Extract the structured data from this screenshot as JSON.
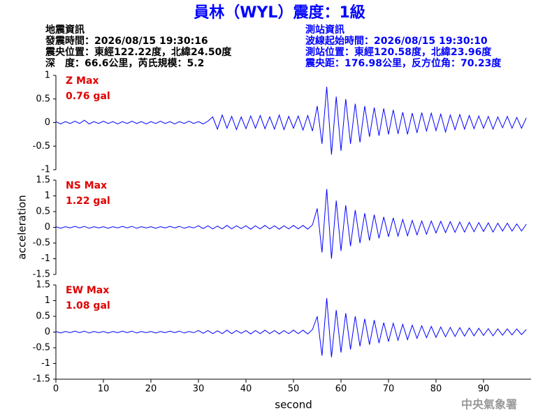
{
  "header": {
    "title": "員林（WYL）震度：1級",
    "quake": [
      "地震資訊",
      "發震時間：2026/08/15 19:30:16",
      "震央位置：東經122.22度，北緯24.50度",
      "深　度：66.6公里，芮氏規模：5.2"
    ],
    "station": [
      "測站資訊",
      "波線起始時間：2026/08/15 19:30:10",
      "測站位置：東經120.58度，北緯23.96度",
      "震央距：176.98公里，反方位角：70.23度"
    ]
  },
  "footer": "中央氣象署",
  "chart_data": [
    {
      "type": "line",
      "annotations": [
        "Z Max",
        "0.76 gal"
      ],
      "color": "#0000ff",
      "xlim": [
        0,
        100
      ],
      "ylim": [
        -1,
        1
      ],
      "yticks": [
        -1,
        -0.5,
        0,
        0.5,
        1
      ],
      "x": [
        0,
        1,
        2,
        3,
        4,
        5,
        6,
        7,
        8,
        9,
        10,
        11,
        12,
        13,
        14,
        15,
        16,
        17,
        18,
        19,
        20,
        21,
        22,
        23,
        24,
        25,
        26,
        27,
        28,
        29,
        30,
        31,
        32,
        33,
        34,
        35,
        36,
        37,
        38,
        39,
        40,
        41,
        42,
        43,
        44,
        45,
        46,
        47,
        48,
        49,
        50,
        51,
        52,
        53,
        54,
        55,
        56,
        57,
        58,
        59,
        60,
        61,
        62,
        63,
        64,
        65,
        66,
        67,
        68,
        69,
        70,
        71,
        72,
        73,
        74,
        75,
        76,
        77,
        78,
        79,
        80,
        81,
        82,
        83,
        84,
        85,
        86,
        87,
        88,
        89,
        90,
        91,
        92,
        93,
        94,
        95,
        96,
        97,
        98,
        99
      ],
      "values": [
        0.02,
        -0.03,
        0.02,
        -0.02,
        0.03,
        -0.02,
        0.05,
        -0.03,
        0.02,
        -0.02,
        0.03,
        -0.02,
        0.02,
        -0.03,
        0.02,
        -0.02,
        0.03,
        -0.02,
        0.02,
        -0.03,
        0.02,
        -0.02,
        0.03,
        -0.02,
        0.02,
        -0.03,
        0.02,
        -0.02,
        0.03,
        -0.02,
        0.02,
        -0.03,
        0.03,
        0.12,
        -0.14,
        0.16,
        -0.12,
        0.13,
        -0.15,
        0.12,
        -0.13,
        0.14,
        -0.12,
        0.15,
        -0.13,
        0.12,
        -0.14,
        0.16,
        -0.15,
        0.13,
        -0.12,
        0.14,
        -0.16,
        0.15,
        -0.18,
        0.35,
        -0.45,
        0.76,
        -0.68,
        0.55,
        -0.6,
        0.5,
        -0.45,
        0.4,
        -0.42,
        0.35,
        -0.3,
        0.32,
        -0.28,
        0.3,
        -0.25,
        0.27,
        -0.24,
        0.22,
        -0.25,
        0.2,
        -0.22,
        0.21,
        -0.18,
        0.2,
        -0.17,
        0.18,
        -0.2,
        0.16,
        -0.15,
        0.17,
        -0.14,
        0.15,
        -0.13,
        0.14,
        -0.12,
        0.13,
        -0.14,
        0.12,
        -0.11,
        0.13,
        -0.12,
        0.11,
        -0.12,
        0.1
      ]
    },
    {
      "type": "line",
      "annotations": [
        "NS Max",
        "1.22 gal"
      ],
      "ylabel": "acceleration",
      "color": "#0000ff",
      "xlim": [
        0,
        100
      ],
      "ylim": [
        -1.5,
        1.5
      ],
      "yticks": [
        -1.5,
        -1,
        -0.5,
        0,
        0.5,
        1,
        1.5
      ],
      "x": [
        0,
        1,
        2,
        3,
        4,
        5,
        6,
        7,
        8,
        9,
        10,
        11,
        12,
        13,
        14,
        15,
        16,
        17,
        18,
        19,
        20,
        21,
        22,
        23,
        24,
        25,
        26,
        27,
        28,
        29,
        30,
        31,
        32,
        33,
        34,
        35,
        36,
        37,
        38,
        39,
        40,
        41,
        42,
        43,
        44,
        45,
        46,
        47,
        48,
        49,
        50,
        51,
        52,
        53,
        54,
        55,
        56,
        57,
        58,
        59,
        60,
        61,
        62,
        63,
        64,
        65,
        66,
        67,
        68,
        69,
        70,
        71,
        72,
        73,
        74,
        75,
        76,
        77,
        78,
        79,
        80,
        81,
        82,
        83,
        84,
        85,
        86,
        87,
        88,
        89,
        90,
        91,
        92,
        93,
        94,
        95,
        96,
        97,
        98,
        99
      ],
      "values": [
        0.02,
        -0.03,
        0.02,
        -0.02,
        0.03,
        -0.02,
        0.03,
        -0.03,
        0.02,
        -0.02,
        0.02,
        -0.03,
        0.02,
        -0.02,
        0.03,
        -0.02,
        0.03,
        -0.03,
        0.02,
        -0.02,
        0.02,
        -0.03,
        0.02,
        -0.02,
        0.03,
        -0.02,
        0.03,
        -0.03,
        0.02,
        -0.02,
        0.05,
        -0.04,
        0.05,
        -0.05,
        0.04,
        -0.05,
        0.06,
        -0.05,
        0.05,
        -0.04,
        0.05,
        -0.06,
        0.05,
        -0.05,
        0.06,
        -0.05,
        0.05,
        -0.06,
        0.05,
        -0.05,
        0.06,
        -0.05,
        0.06,
        -0.06,
        0.08,
        0.6,
        -0.8,
        1.22,
        -1.0,
        0.85,
        -0.75,
        0.7,
        -0.6,
        0.55,
        -0.5,
        0.45,
        -0.42,
        0.4,
        -0.35,
        0.33,
        -0.3,
        0.3,
        -0.28,
        0.25,
        -0.27,
        0.22,
        -0.24,
        0.2,
        -0.22,
        0.2,
        -0.18,
        0.19,
        -0.17,
        0.18,
        -0.16,
        0.17,
        -0.15,
        0.16,
        -0.14,
        0.15,
        -0.13,
        0.14,
        -0.15,
        0.13,
        -0.12,
        0.13,
        -0.12,
        0.11,
        -0.12,
        0.1
      ]
    },
    {
      "type": "line",
      "annotations": [
        "EW Max",
        "1.08 gal"
      ],
      "xlabel": "second",
      "color": "#0000ff",
      "xlim": [
        0,
        100
      ],
      "ylim": [
        -1.5,
        1.5
      ],
      "yticks": [
        -1.5,
        -1,
        -0.5,
        0,
        0.5,
        1,
        1.5
      ],
      "xticks": [
        0,
        10,
        20,
        30,
        40,
        50,
        60,
        70,
        80,
        90
      ],
      "x": [
        0,
        1,
        2,
        3,
        4,
        5,
        6,
        7,
        8,
        9,
        10,
        11,
        12,
        13,
        14,
        15,
        16,
        17,
        18,
        19,
        20,
        21,
        22,
        23,
        24,
        25,
        26,
        27,
        28,
        29,
        30,
        31,
        32,
        33,
        34,
        35,
        36,
        37,
        38,
        39,
        40,
        41,
        42,
        43,
        44,
        45,
        46,
        47,
        48,
        49,
        50,
        51,
        52,
        53,
        54,
        55,
        56,
        57,
        58,
        59,
        60,
        61,
        62,
        63,
        64,
        65,
        66,
        67,
        68,
        69,
        70,
        71,
        72,
        73,
        74,
        75,
        76,
        77,
        78,
        79,
        80,
        81,
        82,
        83,
        84,
        85,
        86,
        87,
        88,
        89,
        90,
        91,
        92,
        93,
        94,
        95,
        96,
        97,
        98,
        99
      ],
      "values": [
        0.02,
        -0.03,
        0.02,
        -0.02,
        0.03,
        -0.02,
        0.03,
        -0.03,
        0.02,
        -0.02,
        0.02,
        -0.03,
        0.02,
        -0.02,
        0.03,
        -0.02,
        0.03,
        -0.03,
        0.02,
        -0.02,
        0.02,
        -0.03,
        0.02,
        -0.02,
        0.03,
        -0.02,
        0.03,
        -0.03,
        0.02,
        -0.02,
        0.05,
        -0.04,
        0.05,
        -0.05,
        0.04,
        -0.05,
        0.06,
        -0.05,
        0.05,
        -0.04,
        0.05,
        -0.06,
        0.05,
        -0.05,
        0.06,
        -0.05,
        0.05,
        -0.06,
        0.05,
        -0.05,
        0.06,
        -0.05,
        0.06,
        -0.06,
        0.08,
        0.5,
        -0.75,
        1.08,
        -0.8,
        0.7,
        -0.65,
        0.6,
        -0.55,
        0.5,
        -0.45,
        0.42,
        -0.4,
        0.38,
        -0.35,
        0.3,
        -0.3,
        0.28,
        -0.26,
        0.25,
        -0.24,
        0.22,
        -0.2,
        0.2,
        -0.18,
        0.18,
        -0.17,
        0.16,
        -0.15,
        0.15,
        -0.14,
        0.14,
        -0.13,
        0.13,
        -0.12,
        0.12,
        -0.11,
        0.11,
        -0.12,
        0.1,
        -0.1,
        0.1,
        -0.09,
        0.1,
        -0.08,
        0.08
      ]
    }
  ]
}
